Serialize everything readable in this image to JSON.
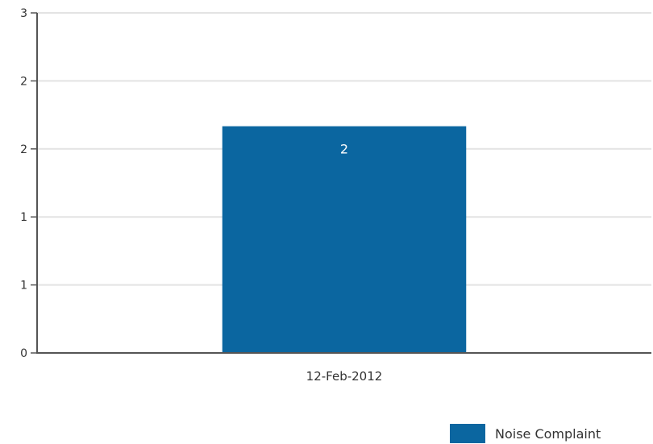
{
  "chart_data": {
    "type": "bar",
    "categories": [
      "12-Feb-2012"
    ],
    "series": [
      {
        "name": "Noise Complaint",
        "values": [
          2
        ],
        "color": "#0b66a0"
      }
    ],
    "ylim": [
      0,
      3
    ],
    "y_ticks": [
      0,
      0.6,
      1.2,
      1.8,
      2.4,
      3
    ],
    "y_tick_labels": [
      "0",
      "1",
      "1",
      "2",
      "2",
      "3"
    ],
    "data_labels": [
      "2"
    ],
    "grid": true,
    "legend_position": "bottom-right",
    "title": "",
    "xlabel": "",
    "ylabel": ""
  }
}
